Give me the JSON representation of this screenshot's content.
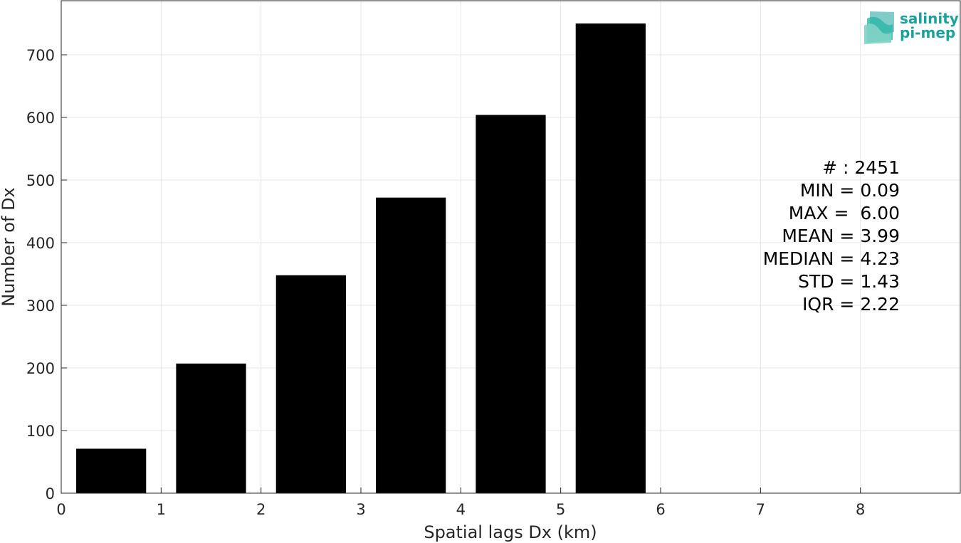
{
  "chart_data": {
    "type": "bar",
    "xlabel": "Spatial lags Dx (km)",
    "ylabel": "Number of Dx",
    "xlim": [
      0,
      9
    ],
    "ylim": [
      0,
      750
    ],
    "x_ticks": [
      0,
      1,
      2,
      3,
      4,
      5,
      6,
      7,
      8
    ],
    "y_ticks": [
      0,
      100,
      200,
      300,
      400,
      500,
      600,
      700
    ],
    "grid": true,
    "bar_color": "#000000",
    "bins": [
      {
        "start": 0,
        "end": 1,
        "value": 71
      },
      {
        "start": 1,
        "end": 2,
        "value": 207
      },
      {
        "start": 2,
        "end": 3,
        "value": 348
      },
      {
        "start": 3,
        "end": 4,
        "value": 472
      },
      {
        "start": 4,
        "end": 5,
        "value": 604
      },
      {
        "start": 5,
        "end": 6,
        "value": 750
      }
    ],
    "stats_lines": [
      "# : 2451",
      "MIN = 0.09",
      "MAX =  6.00",
      "MEAN = 3.99",
      "MEDIAN = 4.23",
      "STD = 1.43",
      "IQR = 2.22"
    ]
  },
  "logo": {
    "line1": "salinity",
    "line2": "pi-mep",
    "color": "#1aa39a"
  }
}
